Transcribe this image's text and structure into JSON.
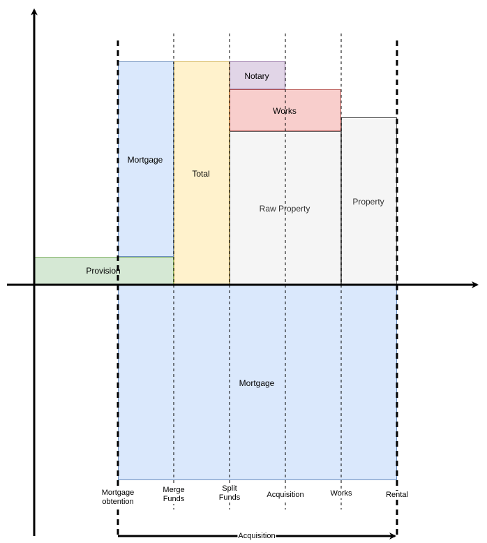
{
  "blocks": {
    "provision": "Provision",
    "mortgage_top": "Mortgage",
    "total": "Total",
    "notary": "Notary",
    "works": "Works",
    "raw_property": "Raw Property",
    "property": "Property",
    "mortgage_bottom": "Mortgage"
  },
  "ticks": {
    "mortgage_obtention": "Mortgage\nobtention",
    "merge_funds": "Merge\nFunds",
    "split_funds": "Split\nFunds",
    "acquisition": "Acquisition",
    "works": "Works",
    "rental": "Rental"
  },
  "span_label": "Acquisition",
  "colors": {
    "provision_fill": "#d5e8d4",
    "provision_stroke": "#82b366",
    "mortgage_fill": "#dae8fc",
    "mortgage_stroke": "#6c8ebf",
    "total_fill": "#fff2cc",
    "total_stroke": "#d6b656",
    "notary_fill": "#e1d5e7",
    "notary_stroke": "#9673a6",
    "works_fill": "#f8cecc",
    "works_stroke": "#b85450",
    "property_fill": "#f5f5f5",
    "property_stroke": "#666666"
  }
}
